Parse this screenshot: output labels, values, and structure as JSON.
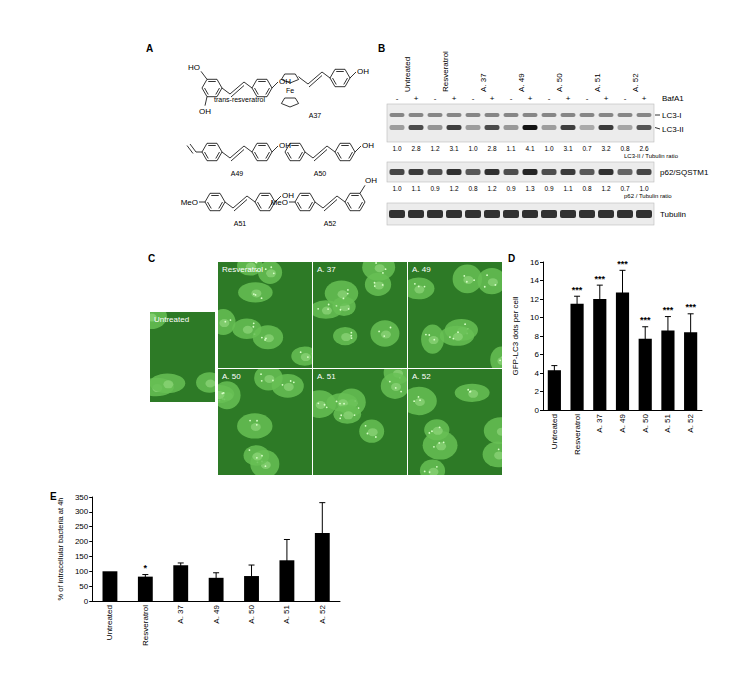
{
  "panels": {
    "A": {
      "label": "A",
      "structures": [
        {
          "name": "trans-resveratrol",
          "groups": [
            "HO",
            "OH",
            "OH"
          ]
        },
        {
          "name": "A37",
          "groups": [
            "Fe",
            "OH"
          ]
        },
        {
          "name": "A49",
          "groups": [
            "OH"
          ]
        },
        {
          "name": "A50",
          "groups": [
            "OH"
          ]
        },
        {
          "name": "A51",
          "groups": [
            "MeO",
            "OH"
          ]
        },
        {
          "name": "A52",
          "groups": [
            "MeO",
            "OH"
          ]
        }
      ]
    },
    "B": {
      "label": "B",
      "lanes": [
        "Untreated",
        "Resveratrol",
        "A. 37",
        "A. 49",
        "A. 50",
        "A. 51",
        "A. 52"
      ],
      "treatment": "BafA1",
      "treatment_marks": [
        "-",
        "+"
      ],
      "blots": [
        {
          "labels": [
            "LC3-I",
            "LC3-II"
          ],
          "ratio_label": "LC3-II / Tubulin ratio",
          "ratios": [
            "1.0",
            "2.8",
            "1.2",
            "3.1",
            "1.0",
            "2.8",
            "1.1",
            "4.1",
            "1.0",
            "3.1",
            "0.7",
            "3.2",
            "0.8",
            "2.6"
          ]
        },
        {
          "labels": [
            "p62/SQSTM1"
          ],
          "ratio_label": "p62 / Tubulin ratio",
          "ratios": [
            "1.0",
            "1.1",
            "0.9",
            "1.2",
            "0.8",
            "1.2",
            "0.9",
            "1.3",
            "0.9",
            "1.1",
            "0.8",
            "1.2",
            "0.7",
            "1.0"
          ]
        },
        {
          "labels": [
            "Tubulin"
          ]
        }
      ]
    },
    "C": {
      "label": "C",
      "images": [
        "Untreated",
        "Resveratrol",
        "A. 37",
        "A. 49",
        "A. 50",
        "A. 51",
        "A. 52"
      ]
    }
  },
  "chart_data": [
    {
      "panel": "D",
      "type": "bar",
      "categories": [
        "Untreated",
        "Resveratrol",
        "A. 37",
        "A. 49",
        "A. 50",
        "A. 51",
        "A. 52"
      ],
      "values": [
        4.3,
        11.5,
        12.0,
        12.7,
        7.7,
        8.6,
        8.4
      ],
      "errors": [
        0.5,
        0.8,
        1.5,
        2.4,
        1.3,
        1.5,
        2.0
      ],
      "significance": [
        null,
        "***",
        "***",
        "***",
        "***",
        "***",
        "***"
      ],
      "y_label": "GFP-LC3 dots per cell",
      "ylim": [
        0,
        16
      ],
      "yticks": [
        0,
        2,
        4,
        6,
        8,
        10,
        12,
        14,
        16
      ],
      "color": "#000000",
      "grid": false
    },
    {
      "panel": "E",
      "type": "bar",
      "categories": [
        "Untreated",
        "Resveratrol",
        "A. 37",
        "A. 49",
        "A. 50",
        "A. 51",
        "A. 52"
      ],
      "values": [
        100,
        82,
        120,
        78,
        84,
        137,
        229
      ],
      "errors": [
        0,
        7,
        8,
        17,
        37,
        70,
        102
      ],
      "significance": [
        null,
        "*",
        null,
        null,
        null,
        null,
        null
      ],
      "y_label": "% of intracellular bacteria at 4h",
      "ylim": [
        0,
        350
      ],
      "yticks": [
        0,
        50,
        100,
        150,
        200,
        250,
        300,
        350
      ],
      "color": "#000000",
      "grid": false
    }
  ]
}
